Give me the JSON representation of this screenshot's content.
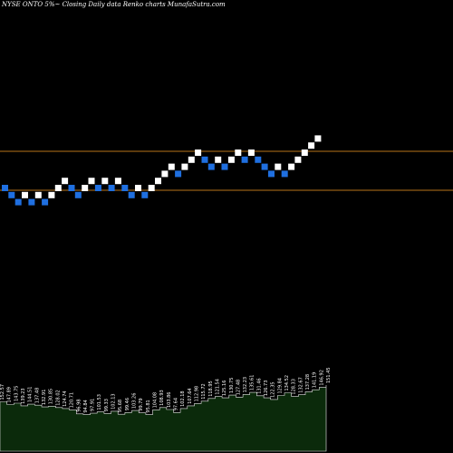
{
  "title": "NYSE ONTO 5%~  Closing Daily data  Renko  charts MunafaSutra.com",
  "colors": {
    "background": "#000000",
    "up_brick": "#ffffff",
    "down_brick": "#1f6fe0",
    "level_line": "#b8741a",
    "volume_fill": "#0b2a0b",
    "volume_line": "#e8e8e8"
  },
  "chart_data": {
    "type": "renko",
    "brick_percent": 5,
    "level_lines": [
      "upper",
      "lower"
    ],
    "bricks": [
      {
        "dir": "down",
        "level": 0
      },
      {
        "dir": "down",
        "level": -1
      },
      {
        "dir": "down",
        "level": -2
      },
      {
        "dir": "up",
        "level": -1
      },
      {
        "dir": "down",
        "level": -2
      },
      {
        "dir": "up",
        "level": -1
      },
      {
        "dir": "down",
        "level": -2
      },
      {
        "dir": "up",
        "level": -1
      },
      {
        "dir": "up",
        "level": 0
      },
      {
        "dir": "up",
        "level": 1
      },
      {
        "dir": "down",
        "level": 0
      },
      {
        "dir": "down",
        "level": -1
      },
      {
        "dir": "up",
        "level": 0
      },
      {
        "dir": "up",
        "level": 1
      },
      {
        "dir": "down",
        "level": 0
      },
      {
        "dir": "up",
        "level": 1
      },
      {
        "dir": "down",
        "level": 0
      },
      {
        "dir": "up",
        "level": 1
      },
      {
        "dir": "down",
        "level": 0
      },
      {
        "dir": "down",
        "level": -1
      },
      {
        "dir": "up",
        "level": 0
      },
      {
        "dir": "down",
        "level": -1
      },
      {
        "dir": "up",
        "level": 0
      },
      {
        "dir": "up",
        "level": 1
      },
      {
        "dir": "up",
        "level": 2
      },
      {
        "dir": "up",
        "level": 3
      },
      {
        "dir": "down",
        "level": 2
      },
      {
        "dir": "up",
        "level": 3
      },
      {
        "dir": "up",
        "level": 4
      },
      {
        "dir": "up",
        "level": 5
      },
      {
        "dir": "down",
        "level": 4
      },
      {
        "dir": "down",
        "level": 3
      },
      {
        "dir": "up",
        "level": 4
      },
      {
        "dir": "down",
        "level": 3
      },
      {
        "dir": "up",
        "level": 4
      },
      {
        "dir": "up",
        "level": 5
      },
      {
        "dir": "down",
        "level": 4
      },
      {
        "dir": "up",
        "level": 5
      },
      {
        "dir": "down",
        "level": 4
      },
      {
        "dir": "down",
        "level": 3
      },
      {
        "dir": "down",
        "level": 2
      },
      {
        "dir": "up",
        "level": 3
      },
      {
        "dir": "down",
        "level": 2
      },
      {
        "dir": "up",
        "level": 3
      },
      {
        "dir": "up",
        "level": 4
      },
      {
        "dir": "up",
        "level": 5
      },
      {
        "dir": "up",
        "level": 6
      },
      {
        "dir": "up",
        "level": 7
      }
    ],
    "volume_labels": [
      "152.57",
      "147.89",
      "143.75",
      "139.23",
      "144.51",
      "137.48",
      "132.91",
      "130.85",
      "128.02",
      "124.74",
      "120.71",
      "96.98",
      "94.84",
      "97.91",
      "101.53",
      "99.33",
      "102.13",
      "95.68",
      "99.46",
      "103.26",
      "99.79",
      "95.81",
      "104.08",
      "108.93",
      "103.86",
      "97.64",
      "102.18",
      "107.64",
      "112.98",
      "115.72",
      "118.95",
      "121.54",
      "125.16",
      "130.75",
      "127.48",
      "132.23",
      "135.61",
      "131.46",
      "126.73",
      "122.35",
      "129.84",
      "134.52",
      "128.33",
      "132.67",
      "137.28",
      "141.19",
      "146.92",
      "151.45"
    ],
    "volume_levels": [
      0.5,
      0.42,
      0.46,
      0.38,
      0.43,
      0.4,
      0.35,
      0.37,
      0.33,
      0.3,
      0.26,
      0.14,
      0.12,
      0.16,
      0.2,
      0.15,
      0.22,
      0.13,
      0.18,
      0.24,
      0.17,
      0.12,
      0.26,
      0.33,
      0.27,
      0.18,
      0.3,
      0.38,
      0.45,
      0.52,
      0.6,
      0.66,
      0.62,
      0.7,
      0.64,
      0.72,
      0.78,
      0.68,
      0.62,
      0.57,
      0.69,
      0.77,
      0.66,
      0.71,
      0.8,
      0.86,
      0.93,
      1.0
    ]
  }
}
